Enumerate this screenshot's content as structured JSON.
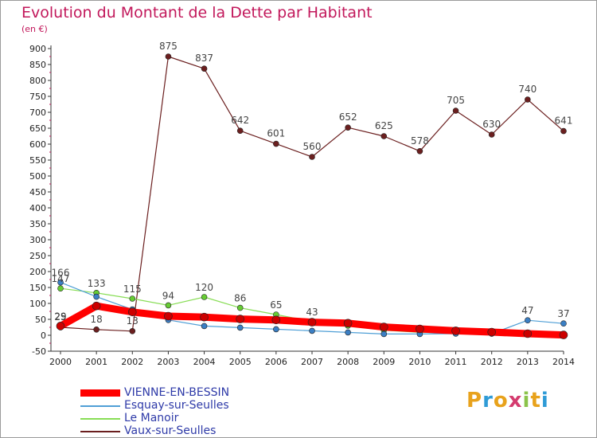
{
  "chart_data": {
    "type": "line",
    "title": "Evolution du Montant de la Dette par Habitant",
    "unit_label": "(en €)",
    "xlabel": "",
    "ylabel": "",
    "ylim": [
      -50,
      900
    ],
    "ytick_step": 50,
    "grid": false,
    "categories": [
      "2000",
      "2001",
      "2002",
      "2003",
      "2004",
      "2005",
      "2006",
      "2007",
      "2008",
      "2009",
      "2010",
      "2011",
      "2012",
      "2013",
      "2014"
    ],
    "series": [
      {
        "name": "VIENNE-EN-BESSIN",
        "color": "#ff0000",
        "markerColor": "#cc0000",
        "values": [
          29,
          92,
          73,
          60,
          57,
          51,
          48,
          41,
          38,
          26,
          20,
          14,
          10,
          5,
          1
        ],
        "labels": [
          "29",
          "",
          "",
          "",
          "",
          "",
          "",
          "",
          "",
          "",
          "",
          "",
          "",
          "",
          ""
        ]
      },
      {
        "name": "Esquay-sur-Seulles",
        "color": "#4f9fd6",
        "markerColor": "#3b7fc4",
        "values": [
          166,
          121,
          81,
          48,
          29,
          24,
          19,
          14,
          9,
          4,
          4,
          5,
          5,
          47,
          37
        ],
        "labels": [
          "166",
          "",
          "",
          "",
          "",
          "",
          "",
          "",
          "",
          "",
          "",
          "",
          "",
          "47",
          "37"
        ]
      },
      {
        "name": "Le Manoir",
        "color": "#88dd55",
        "markerColor": "#66cc33",
        "values": [
          147,
          133,
          115,
          94,
          120,
          86,
          65,
          43,
          30,
          16,
          9,
          8,
          5,
          3,
          2
        ],
        "labels": [
          "147",
          "133",
          "115",
          "94",
          "120",
          "86",
          "65",
          "43",
          "",
          "",
          "",
          "",
          "",
          "",
          ""
        ]
      },
      {
        "name": "Vaux-sur-Seulles",
        "color": "#6b1f1f",
        "markerColor": "#6b1f1f",
        "values": [
          25,
          18,
          13,
          875,
          837,
          642,
          601,
          560,
          652,
          625,
          578,
          705,
          630,
          740,
          641
        ],
        "labels": [
          "25",
          "18",
          "13",
          "875",
          "837",
          "642",
          "601",
          "560",
          "652",
          "625",
          "578",
          "705",
          "630",
          "740",
          "641"
        ]
      }
    ]
  },
  "brand": {
    "letters": [
      "P",
      "r",
      "o",
      "x",
      "i",
      "t",
      "i"
    ],
    "colors": [
      "#e8a21c",
      "#2f9bd6",
      "#e8a21c",
      "#d43b6e",
      "#8bc34a",
      "#e8a21c",
      "#2f9bd6"
    ]
  }
}
